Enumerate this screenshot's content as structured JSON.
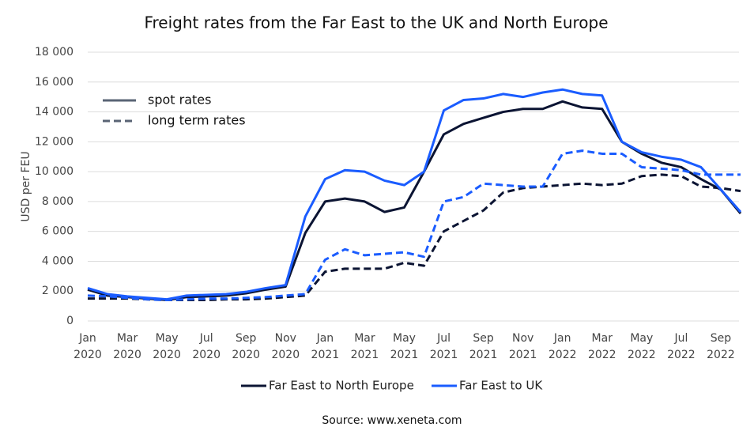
{
  "chart_data": {
    "type": "line",
    "title": "Freight rates from the Far East to the UK and North Europe",
    "y_label": "USD per FEU",
    "source": "Source: www.xeneta.com",
    "grid": true,
    "legend_position": "bottom",
    "x": [
      "2020-01",
      "2020-02",
      "2020-03",
      "2020-04",
      "2020-05",
      "2020-06",
      "2020-07",
      "2020-08",
      "2020-09",
      "2020-10",
      "2020-11",
      "2020-12",
      "2021-01",
      "2021-02",
      "2021-03",
      "2021-04",
      "2021-05",
      "2021-06",
      "2021-07",
      "2021-08",
      "2021-09",
      "2021-10",
      "2021-11",
      "2021-12",
      "2022-01",
      "2022-02",
      "2022-03",
      "2022-04",
      "2022-05",
      "2022-06",
      "2022-07",
      "2022-08",
      "2022-09",
      "2022-10"
    ],
    "xticks": [
      {
        "value": "2020-01",
        "label": "Jan 2020"
      },
      {
        "value": "2020-03",
        "label": "Mar 2020"
      },
      {
        "value": "2020-05",
        "label": "May 2020"
      },
      {
        "value": "2020-07",
        "label": "Jul 2020"
      },
      {
        "value": "2020-09",
        "label": "Sep 2020"
      },
      {
        "value": "2020-11",
        "label": "Nov 2020"
      },
      {
        "value": "2021-01",
        "label": "Jan 2021"
      },
      {
        "value": "2021-03",
        "label": "Mar 2021"
      },
      {
        "value": "2021-05",
        "label": "May 2021"
      },
      {
        "value": "2021-07",
        "label": "Jul 2021"
      },
      {
        "value": "2021-09",
        "label": "Sep 2021"
      },
      {
        "value": "2021-11",
        "label": "Nov 2021"
      },
      {
        "value": "2022-01",
        "label": "Jan 2022"
      },
      {
        "value": "2022-03",
        "label": "Mar 2022"
      },
      {
        "value": "2022-05",
        "label": "May 2022"
      },
      {
        "value": "2022-07",
        "label": "Jul 2022"
      },
      {
        "value": "2022-09",
        "label": "Sep 2022"
      }
    ],
    "ylim": [
      0,
      18000
    ],
    "yticks": [
      0,
      {
        "value": 2000,
        "label": "2 000"
      },
      {
        "value": 4000,
        "label": "4 000"
      },
      {
        "value": 6000,
        "label": "6 000"
      },
      {
        "value": 8000,
        "label": "8 000"
      },
      {
        "value": 10000,
        "label": "10 000"
      },
      {
        "value": 12000,
        "label": "12 000"
      },
      {
        "value": 14000,
        "label": "14 000"
      },
      {
        "value": 16000,
        "label": "16 000"
      },
      {
        "value": 18000,
        "label": "18 000"
      }
    ],
    "line_styles": [
      {
        "name": "spot rates",
        "dash": "solid"
      },
      {
        "name": "long term rates",
        "dash": "dashed"
      }
    ],
    "series": [
      {
        "name": "Far East to North Europe",
        "color": "#0b1433",
        "values": [
          2100,
          1700,
          1600,
          1500,
          1400,
          1600,
          1650,
          1700,
          1850,
          2100,
          2300,
          5900,
          8000,
          8200,
          8000,
          7300,
          7600,
          10000,
          12500,
          13200,
          13600,
          14000,
          14200,
          14200,
          14700,
          14300,
          14200,
          12000,
          11200,
          10600,
          10300,
          9500,
          8800,
          7200
        ],
        "long_term": [
          1500,
          1500,
          1500,
          1450,
          1400,
          1400,
          1400,
          1450,
          1450,
          1500,
          1600,
          1700,
          3300,
          3500,
          3500,
          3500,
          3900,
          3700,
          6000,
          6700,
          7400,
          8600,
          8900,
          9000,
          9100,
          9200,
          9100,
          9200,
          9700,
          9800,
          9700,
          9000,
          8900,
          8700
        ]
      },
      {
        "name": "Far East to UK",
        "color": "#1a5cff",
        "values": [
          2200,
          1800,
          1650,
          1550,
          1450,
          1700,
          1750,
          1800,
          1950,
          2200,
          2400,
          7000,
          9500,
          10100,
          10000,
          9400,
          9100,
          10000,
          14100,
          14800,
          14900,
          15200,
          15000,
          15300,
          15500,
          15200,
          15100,
          12000,
          11300,
          11000,
          10800,
          10300,
          8800,
          7300
        ],
        "long_term": [
          1700,
          1650,
          1550,
          1450,
          1400,
          1450,
          1500,
          1500,
          1550,
          1600,
          1700,
          1800,
          4100,
          4800,
          4400,
          4500,
          4600,
          4300,
          8000,
          8300,
          9200,
          9100,
          9000,
          9000,
          11200,
          11400,
          11200,
          11200,
          10300,
          10200,
          10100,
          9800,
          9800,
          9800
        ]
      }
    ]
  }
}
